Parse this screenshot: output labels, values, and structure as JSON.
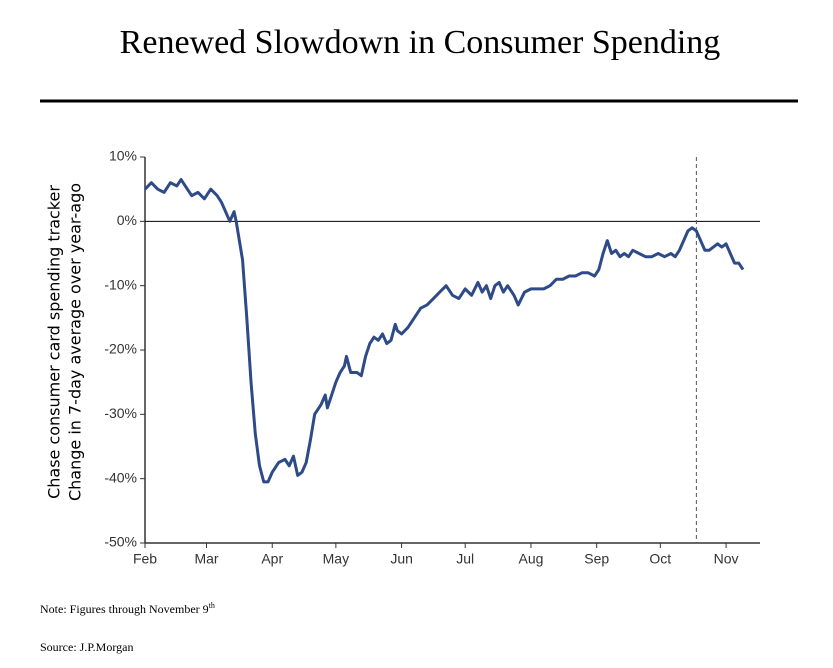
{
  "chart_data": {
    "type": "line",
    "title": "Renewed Slowdown in Consumer Spending",
    "ylabel": [
      "Chase consumer card spending tracker",
      "Change in 7-day average over year-ago"
    ],
    "note": {
      "text": "Note: Figures through November 9",
      "superscript": "th"
    },
    "source": "Source: J.P.Morgan",
    "xlim": [
      0,
      290
    ],
    "xticks": [
      {
        "value": 0,
        "label": "Feb"
      },
      {
        "value": 29,
        "label": "Mar"
      },
      {
        "value": 60,
        "label": "Apr"
      },
      {
        "value": 90,
        "label": "May"
      },
      {
        "value": 121,
        "label": "Jun"
      },
      {
        "value": 151,
        "label": "Jul"
      },
      {
        "value": 182,
        "label": "Aug"
      },
      {
        "value": 213,
        "label": "Sep"
      },
      {
        "value": 243,
        "label": "Oct"
      },
      {
        "value": 274,
        "label": "Nov"
      }
    ],
    "ylim": [
      -50,
      10
    ],
    "yticks": [
      {
        "value": 10,
        "label": "10%"
      },
      {
        "value": 0,
        "label": "0%"
      },
      {
        "value": -10,
        "label": "-10%"
      },
      {
        "value": -20,
        "label": "-20%"
      },
      {
        "value": -30,
        "label": "-30%"
      },
      {
        "value": -40,
        "label": "-40%"
      },
      {
        "value": -50,
        "label": "-50%"
      }
    ],
    "zero_line": 0,
    "reference_line_x": 260,
    "x": [
      0,
      3,
      6,
      9,
      12,
      15,
      17,
      20,
      22,
      25,
      28,
      31,
      34,
      36,
      38,
      40,
      42,
      43,
      44,
      46,
      48,
      50,
      52,
      54,
      56,
      58,
      60,
      63,
      66,
      68,
      70,
      72,
      74,
      76,
      78,
      80,
      83,
      85,
      86,
      88,
      90,
      92,
      94,
      95,
      97,
      100,
      102,
      104,
      106,
      108,
      110,
      112,
      114,
      116,
      118,
      119,
      121,
      124,
      127,
      130,
      133,
      136,
      139,
      142,
      145,
      148,
      151,
      154,
      157,
      159,
      161,
      163,
      165,
      167,
      169,
      171,
      174,
      176,
      179,
      182,
      185,
      188,
      191,
      194,
      197,
      200,
      203,
      206,
      209,
      212,
      214,
      216,
      218,
      220,
      222,
      224,
      226,
      228,
      230,
      233,
      236,
      239,
      242,
      245,
      248,
      250,
      252,
      254,
      256,
      258,
      260,
      262,
      264,
      266,
      268,
      270,
      272,
      274,
      276,
      278,
      280,
      282
    ],
    "series": [
      {
        "name": "Chase consumer card spending tracker",
        "color": "#2e4a87",
        "values": [
          5,
          6,
          5,
          4.5,
          6,
          5.5,
          6.5,
          5,
          4,
          4.5,
          3.5,
          5,
          4,
          3,
          1.5,
          0,
          1.5,
          0,
          -2,
          -6,
          -15,
          -25,
          -33,
          -38,
          -40.5,
          -40.5,
          -39,
          -37.5,
          -37,
          -38,
          -36.5,
          -39.5,
          -39,
          -37.5,
          -34,
          -30,
          -28.5,
          -27,
          -29,
          -27,
          -25,
          -23.5,
          -22.5,
          -21,
          -23.5,
          -23.5,
          -24,
          -21,
          -19,
          -18,
          -18.5,
          -17.5,
          -19,
          -18.5,
          -16,
          -17,
          -17.5,
          -16.5,
          -15,
          -13.5,
          -13,
          -12,
          -11,
          -10,
          -11.5,
          -12,
          -10.5,
          -11.5,
          -9.5,
          -11,
          -10,
          -12,
          -10,
          -9.5,
          -11,
          -10,
          -11.5,
          -13,
          -11,
          -10.5,
          -10.5,
          -10.5,
          -10,
          -9,
          -9,
          -8.5,
          -8.5,
          -8,
          -8,
          -8.5,
          -7.5,
          -5,
          -3,
          -5,
          -4.5,
          -5.5,
          -5,
          -5.5,
          -4.5,
          -5,
          -5.5,
          -5.5,
          -5,
          -5.5,
          -5,
          -5.5,
          -4.5,
          -3,
          -1.5,
          -1,
          -1.5,
          -3,
          -4.5,
          -4.5,
          -4,
          -3.5,
          -4,
          -3.5,
          -5,
          -6.5,
          -6.5,
          -7.5
        ]
      }
    ]
  }
}
